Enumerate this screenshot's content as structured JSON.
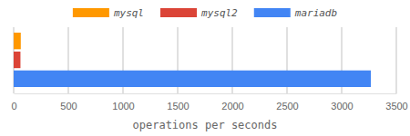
{
  "chart_data": {
    "type": "bar",
    "orientation": "horizontal",
    "xlabel": "operations per seconds",
    "categories": [
      null
    ],
    "series": [
      {
        "name": "mysql",
        "color": "#ff9800",
        "values": [
          65
        ]
      },
      {
        "name": "mysql2",
        "color": "#db4437",
        "values": [
          62
        ]
      },
      {
        "name": "mariadb",
        "color": "#4285f4",
        "values": [
          3267
        ]
      }
    ],
    "xlim": [
      0,
      3500
    ],
    "xticks": [
      0,
      500,
      1000,
      1500,
      2000,
      2500,
      3000,
      3500
    ],
    "grid": true,
    "legend": "top"
  }
}
